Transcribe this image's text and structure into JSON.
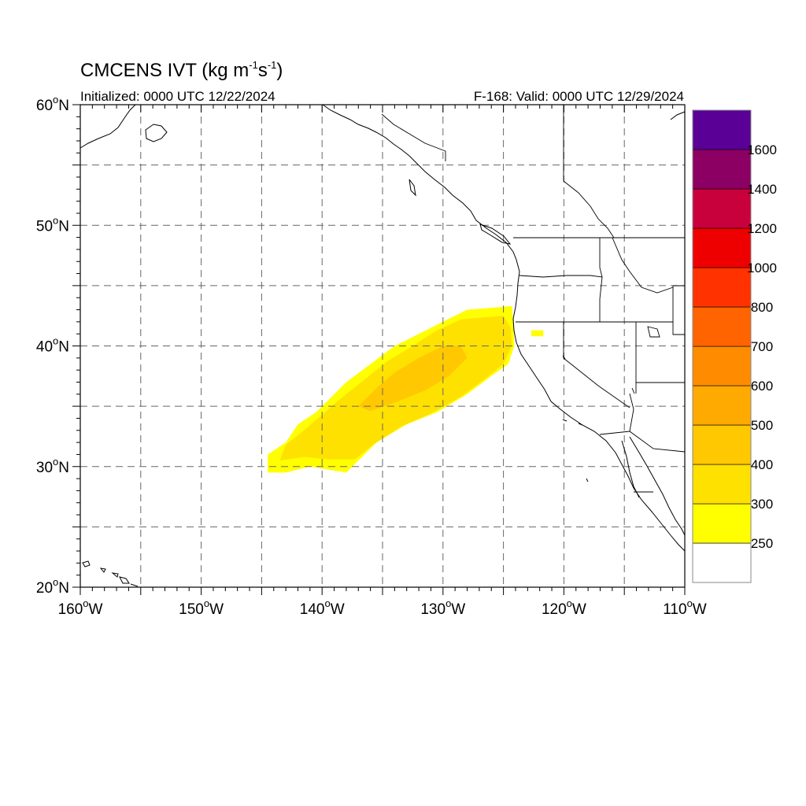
{
  "title": {
    "prefix": "CMCENS IVT (kg m",
    "exp1": "-1",
    "mid": "s",
    "exp2": "-1",
    "suffix": ")"
  },
  "subtitle_left": "Initialized: 0000 UTC 12/22/2024",
  "subtitle_right": "F-168: Valid: 0000 UTC 12/29/2024",
  "lon_ticks": [
    {
      "lon": -160,
      "num": "160",
      "deg": "o",
      "hem": "W"
    },
    {
      "lon": -150,
      "num": "150",
      "deg": "o",
      "hem": "W"
    },
    {
      "lon": -140,
      "num": "140",
      "deg": "o",
      "hem": "W"
    },
    {
      "lon": -130,
      "num": "130",
      "deg": "o",
      "hem": "W"
    },
    {
      "lon": -120,
      "num": "120",
      "deg": "o",
      "hem": "W"
    },
    {
      "lon": -110,
      "num": "110",
      "deg": "o",
      "hem": "W"
    }
  ],
  "lat_ticks": [
    {
      "lat": 60,
      "num": "60",
      "deg": "o",
      "hem": "N"
    },
    {
      "lat": 50,
      "num": "50",
      "deg": "o",
      "hem": "N"
    },
    {
      "lat": 40,
      "num": "40",
      "deg": "o",
      "hem": "N"
    },
    {
      "lat": 30,
      "num": "30",
      "deg": "o",
      "hem": "N"
    },
    {
      "lat": 20,
      "num": "20",
      "deg": "o",
      "hem": "N"
    }
  ],
  "colorbar": {
    "levels": [
      "250",
      "300",
      "400",
      "500",
      "600",
      "700",
      "800",
      "1000",
      "1200",
      "1400",
      "1600"
    ],
    "colors": [
      "#ffffff",
      "#ffff00",
      "#ffe100",
      "#ffc800",
      "#ffaa00",
      "#ff8c00",
      "#ff6400",
      "#ff3200",
      "#ee0000",
      "#c8003c",
      "#8c0064",
      "#5a0096"
    ]
  },
  "map": {
    "lon_range": [
      -160,
      -110
    ],
    "lat_range": [
      20,
      60
    ],
    "grid": "dashed 5 degree",
    "land_color": "#ffffff",
    "coast_color": "#000000"
  },
  "ivt_field": {
    "description_units": "kg m-1 s-1",
    "bands": [
      {
        "level": 250,
        "color": "#ffff00",
        "polygon_lonlat": [
          [
            -144.5,
            29.5
          ],
          [
            -144.5,
            31
          ],
          [
            -143,
            32
          ],
          [
            -142,
            33.5
          ],
          [
            -140.5,
            34.5
          ],
          [
            -139.5,
            35.5
          ],
          [
            -138,
            37
          ],
          [
            -136,
            38.5
          ],
          [
            -134,
            40
          ],
          [
            -132,
            41
          ],
          [
            -130,
            42
          ],
          [
            -128,
            43
          ],
          [
            -124.3,
            43.3
          ],
          [
            -124.2,
            42
          ],
          [
            -124.1,
            40
          ],
          [
            -124.6,
            38.5
          ],
          [
            -126,
            37.5
          ],
          [
            -128,
            36
          ],
          [
            -130.5,
            34.5
          ],
          [
            -133,
            33.5
          ],
          [
            -135.5,
            32
          ],
          [
            -137,
            30.5
          ],
          [
            -138,
            29.5
          ],
          [
            -141,
            30
          ],
          [
            -143,
            29.5
          ]
        ]
      },
      {
        "level": 300,
        "color": "#ffe100",
        "polygon_lonlat": [
          [
            -143.5,
            30.5
          ],
          [
            -143,
            31.8
          ],
          [
            -141.5,
            33
          ],
          [
            -140,
            34.3
          ],
          [
            -138.5,
            35.6
          ],
          [
            -136.5,
            37.2
          ],
          [
            -134.5,
            38.8
          ],
          [
            -132.5,
            40
          ],
          [
            -130.5,
            41.3
          ],
          [
            -128.5,
            42.2
          ],
          [
            -125,
            42.5
          ],
          [
            -124.4,
            41.5
          ],
          [
            -124.3,
            40
          ],
          [
            -125,
            38.5
          ],
          [
            -126.5,
            37.3
          ],
          [
            -128.5,
            35.8
          ],
          [
            -131,
            34.4
          ],
          [
            -133.5,
            33.3
          ],
          [
            -135.8,
            31.8
          ],
          [
            -137.3,
            30.6
          ],
          [
            -139.5,
            30.6
          ],
          [
            -141.5,
            30.8
          ]
        ]
      },
      {
        "level": 400,
        "color": "#ffc800",
        "polygon_lonlat": [
          [
            -137,
            35
          ],
          [
            -135.5,
            36.5
          ],
          [
            -134,
            37.8
          ],
          [
            -132,
            39
          ],
          [
            -130,
            40
          ],
          [
            -128.5,
            40
          ],
          [
            -128,
            39
          ],
          [
            -129.5,
            37.5
          ],
          [
            -131.5,
            36.3
          ],
          [
            -134,
            35.3
          ],
          [
            -136,
            34.6
          ]
        ]
      },
      {
        "level": 250,
        "color": "#ffff00",
        "polygon_lonlat": [
          [
            -122.7,
            41.3
          ],
          [
            -122.7,
            40.8
          ],
          [
            -121.7,
            40.8
          ],
          [
            -121.7,
            41.3
          ]
        ]
      }
    ]
  }
}
